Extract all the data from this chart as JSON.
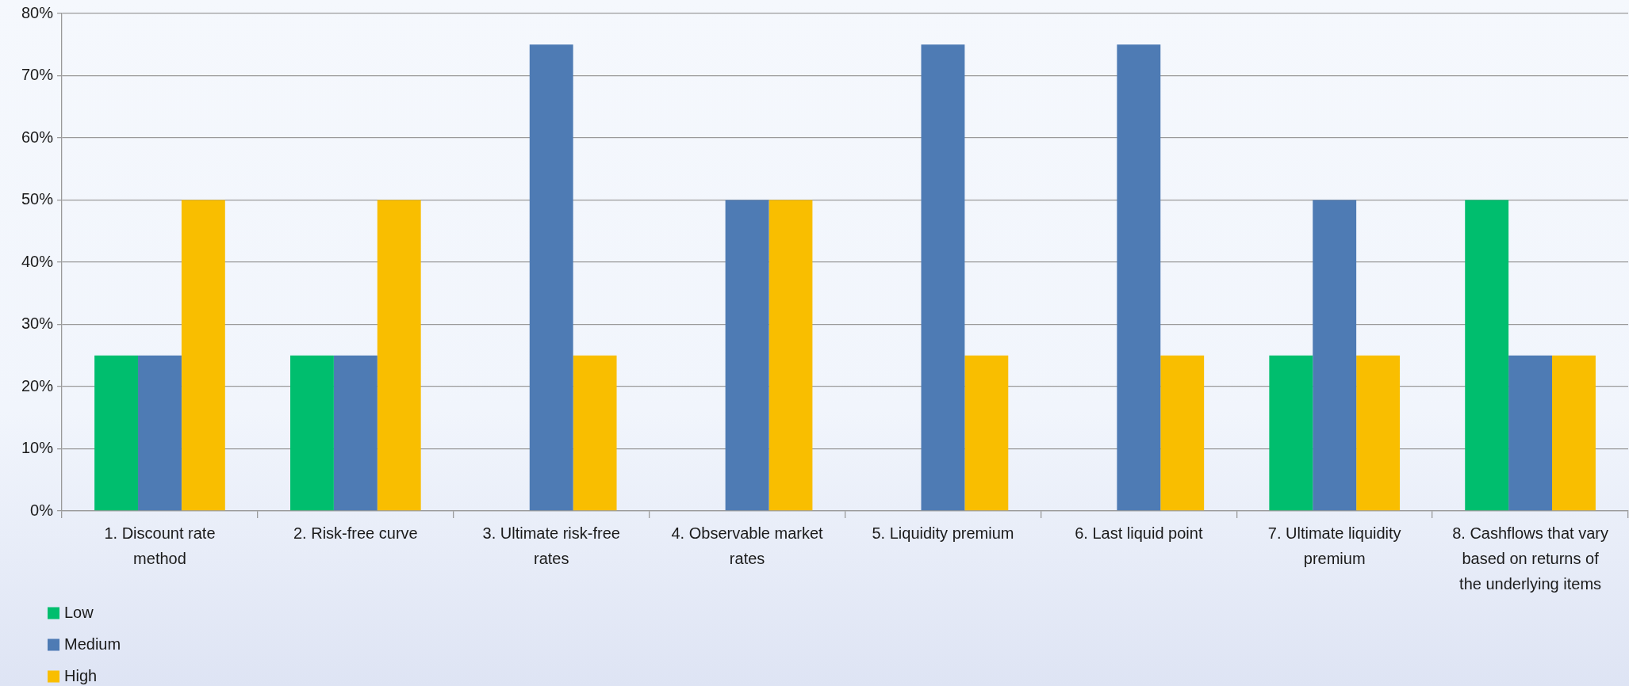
{
  "chart_data": {
    "type": "bar",
    "categories": [
      "1. Discount rate method",
      "2. Risk-free curve",
      "3. Ultimate risk-free rates",
      "4. Observable market rates",
      "5. Liquidity premium",
      "6. Last liquid point",
      "7. Ultimate liquidity premium",
      "8. Cashflows that vary based on returns of the underlying items"
    ],
    "series": [
      {
        "name": "Low",
        "color": "#00be6e",
        "values": [
          25,
          25,
          0,
          0,
          0,
          0,
          25,
          50
        ]
      },
      {
        "name": "Medium",
        "color": "#4e7bb4",
        "values": [
          25,
          25,
          75,
          50,
          75,
          75,
          50,
          25
        ]
      },
      {
        "name": "High",
        "color": "#f9be00",
        "values": [
          50,
          50,
          25,
          50,
          25,
          25,
          25,
          25
        ]
      }
    ],
    "ylim": [
      0,
      80
    ],
    "yticks": [
      {
        "value": 0,
        "label": "0%"
      },
      {
        "value": 10,
        "label": "10%"
      },
      {
        "value": 20,
        "label": "20%"
      },
      {
        "value": 30,
        "label": "30%"
      },
      {
        "value": 40,
        "label": "40%"
      },
      {
        "value": 50,
        "label": "50%"
      },
      {
        "value": 60,
        "label": "60%"
      },
      {
        "value": 70,
        "label": "70%"
      },
      {
        "value": 80,
        "label": "80%"
      }
    ],
    "grid": "y",
    "legend": "bottom left"
  }
}
